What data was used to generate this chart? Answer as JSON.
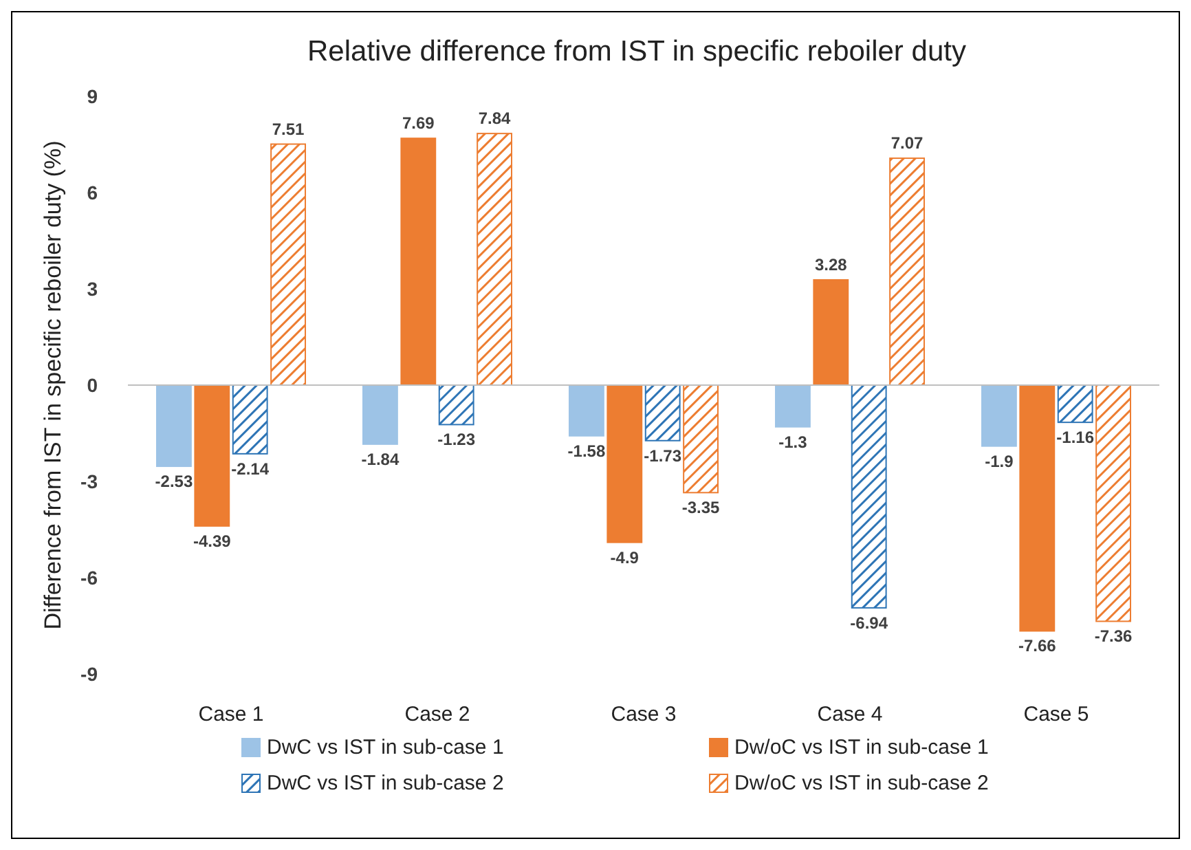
{
  "chart_data": {
    "type": "bar",
    "title": "Relative difference from IST in specific reboiler duty",
    "ylabel": "Difference from IST in specific reboiler duty (%)",
    "categories": [
      "Case 1",
      "Case 2",
      "Case 3",
      "Case 4",
      "Case 5"
    ],
    "series": [
      {
        "name": "DwC vs IST in sub-case 1",
        "color": "#9dc3e6",
        "values": [
          -2.53,
          -1.84,
          -1.58,
          -1.3,
          -1.9
        ]
      },
      {
        "name": "Dw/oC vs IST in sub-case 1",
        "color": "#ed7d31",
        "values": [
          -4.39,
          7.69,
          -4.9,
          3.28,
          -7.66
        ]
      },
      {
        "name": "DwC vs IST in sub-case 2",
        "color": "#2e75b6",
        "values": [
          -2.14,
          -1.23,
          -1.73,
          -6.94,
          -1.16
        ]
      },
      {
        "name": "Dw/oC vs IST in sub-case 2",
        "color": "#ed7d31",
        "values": [
          7.51,
          7.84,
          -3.35,
          7.07,
          -7.36
        ]
      }
    ],
    "ylim": [
      -9,
      9
    ],
    "yticks": [
      -9,
      -6,
      -3,
      0,
      3,
      6,
      9
    ],
    "legend": "bottom",
    "data_labels": true
  }
}
